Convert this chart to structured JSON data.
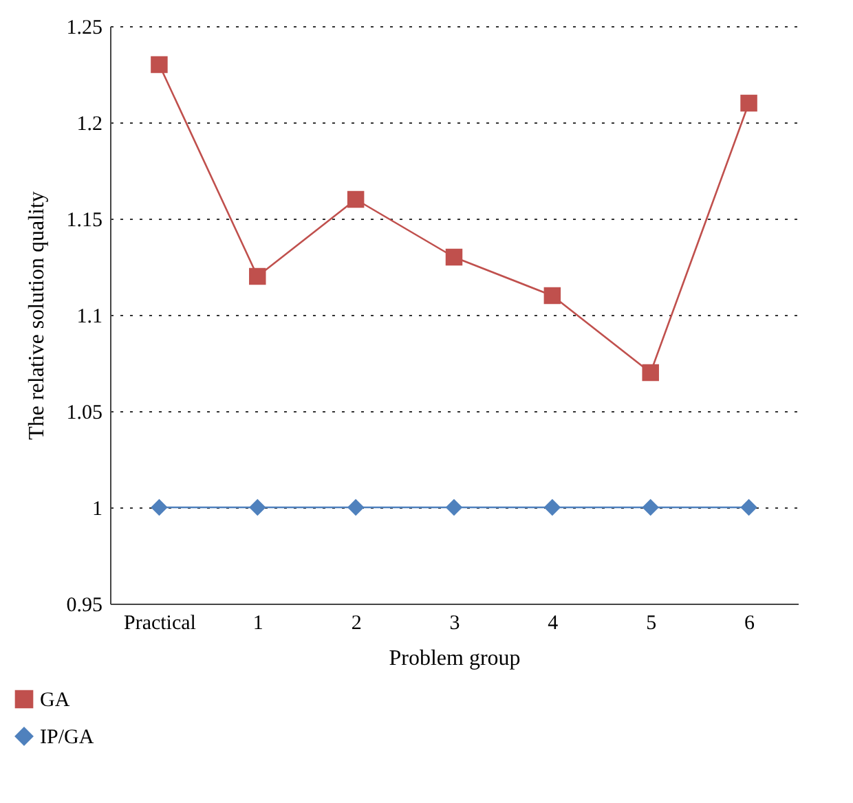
{
  "chart_data": {
    "type": "line",
    "xlabel": "Problem group",
    "ylabel": "The relative solution quality",
    "categories": [
      "Practical",
      "1",
      "2",
      "3",
      "4",
      "5",
      "6"
    ],
    "series": [
      {
        "name": "GA",
        "color": "#c0504d",
        "marker": "square",
        "values": [
          1.23,
          1.12,
          1.16,
          1.13,
          1.11,
          1.07,
          1.21
        ]
      },
      {
        "name": "IP/GA",
        "color": "#4f81bd",
        "marker": "diamond",
        "values": [
          1,
          1,
          1,
          1,
          1,
          1,
          1
        ]
      }
    ],
    "ylim": [
      0.95,
      1.25
    ],
    "yticks": [
      0.95,
      1,
      1.05,
      1.1,
      1.15,
      1.2,
      1.25
    ],
    "grid": "y",
    "legend": "bottom left",
    "line_style": "solid"
  }
}
